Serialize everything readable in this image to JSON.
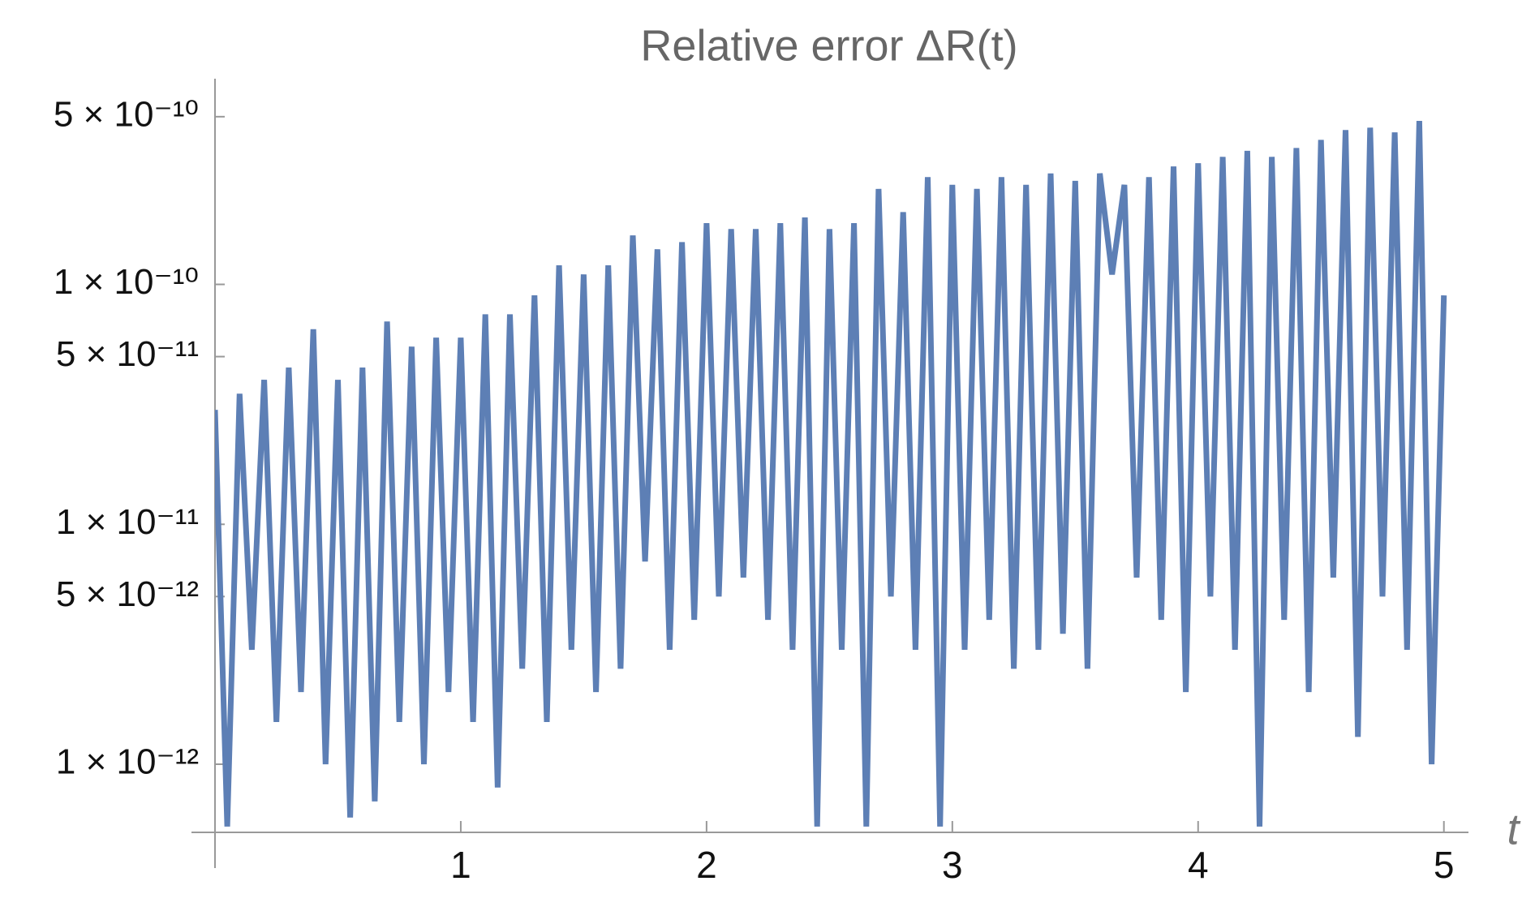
{
  "chart_data": {
    "type": "line",
    "title": "Relative error ΔR(t)",
    "x_label": "t",
    "log_y": true,
    "grid": false,
    "xlim": [
      0,
      5.1
    ],
    "ylim": [
      5.2e-13,
      7.2e-10
    ],
    "xticks": [
      1,
      2,
      3,
      4,
      5
    ],
    "yticks": [
      {
        "value": 5e-10,
        "label": "5 × 10⁻¹⁰"
      },
      {
        "value": 1e-10,
        "label": "1 × 10⁻¹⁰"
      },
      {
        "value": 5e-11,
        "label": "5 × 10⁻¹¹"
      },
      {
        "value": 1e-11,
        "label": "1 × 10⁻¹¹"
      },
      {
        "value": 5e-12,
        "label": "5 × 10⁻¹²"
      },
      {
        "value": 1e-12,
        "label": "1 × 10⁻¹²"
      }
    ],
    "x": [
      0,
      0.05,
      0.1,
      0.15,
      0.2,
      0.25,
      0.3,
      0.35,
      0.4,
      0.45,
      0.5,
      0.55,
      0.6,
      0.65,
      0.7,
      0.75,
      0.8,
      0.85,
      0.9,
      0.95,
      1.0,
      1.05,
      1.1,
      1.15,
      1.2,
      1.25,
      1.3,
      1.35,
      1.4,
      1.45,
      1.5,
      1.55,
      1.6,
      1.65,
      1.7,
      1.75,
      1.8,
      1.85,
      1.9,
      1.95,
      2.0,
      2.05,
      2.1,
      2.15,
      2.2,
      2.25,
      2.3,
      2.35,
      2.4,
      2.45,
      2.5,
      2.55,
      2.6,
      2.65,
      2.7,
      2.75,
      2.8,
      2.85,
      2.9,
      2.95,
      3.0,
      3.05,
      3.1,
      3.15,
      3.2,
      3.25,
      3.3,
      3.35,
      3.4,
      3.45,
      3.5,
      3.55,
      3.6,
      3.65,
      3.7,
      3.75,
      3.8,
      3.85,
      3.9,
      3.95,
      4.0,
      4.05,
      4.1,
      4.15,
      4.2,
      4.25,
      4.3,
      4.35,
      4.4,
      4.45,
      4.5,
      4.55,
      4.6,
      4.65,
      4.7,
      4.75,
      4.8,
      4.85,
      4.9,
      4.95,
      5.0
    ],
    "series": [
      {
        "color": "#5d7fb5",
        "values": [
          3e-11,
          5.5e-13,
          3.5e-11,
          3e-12,
          4e-11,
          1.5e-12,
          4.5e-11,
          2e-12,
          6.5e-11,
          1e-12,
          4e-11,
          6e-13,
          4.5e-11,
          7e-13,
          7e-11,
          1.5e-12,
          5.5e-11,
          1e-12,
          6e-11,
          2e-12,
          6e-11,
          1.5e-12,
          7.5e-11,
          8e-13,
          7.5e-11,
          2.5e-12,
          9e-11,
          1.5e-12,
          1.2e-10,
          3e-12,
          1.1e-10,
          2e-12,
          1.2e-10,
          2.5e-12,
          1.6e-10,
          7e-12,
          1.4e-10,
          3e-12,
          1.5e-10,
          4e-12,
          1.8e-10,
          5e-12,
          1.7e-10,
          6e-12,
          1.7e-10,
          4e-12,
          1.8e-10,
          3e-12,
          1.9e-10,
          5.5e-13,
          1.7e-10,
          3e-12,
          1.8e-10,
          5.5e-13,
          2.5e-10,
          5e-12,
          2e-10,
          3e-12,
          2.8e-10,
          5.5e-13,
          2.6e-10,
          3e-12,
          2.5e-10,
          4e-12,
          2.8e-10,
          2.5e-12,
          2.6e-10,
          3e-12,
          2.9e-10,
          3.5e-12,
          2.7e-10,
          2.5e-12,
          2.9e-10,
          1.1e-10,
          2.6e-10,
          6e-12,
          2.8e-10,
          4e-12,
          3.1e-10,
          2e-12,
          3.2e-10,
          5e-12,
          3.4e-10,
          3e-12,
          3.6e-10,
          5.5e-13,
          3.4e-10,
          4e-12,
          3.7e-10,
          2e-12,
          4e-10,
          6e-12,
          4.4e-10,
          1.3e-12,
          4.5e-10,
          5e-12,
          4.3e-10,
          3e-12,
          4.8e-10,
          1e-12,
          9e-11
        ]
      }
    ]
  }
}
